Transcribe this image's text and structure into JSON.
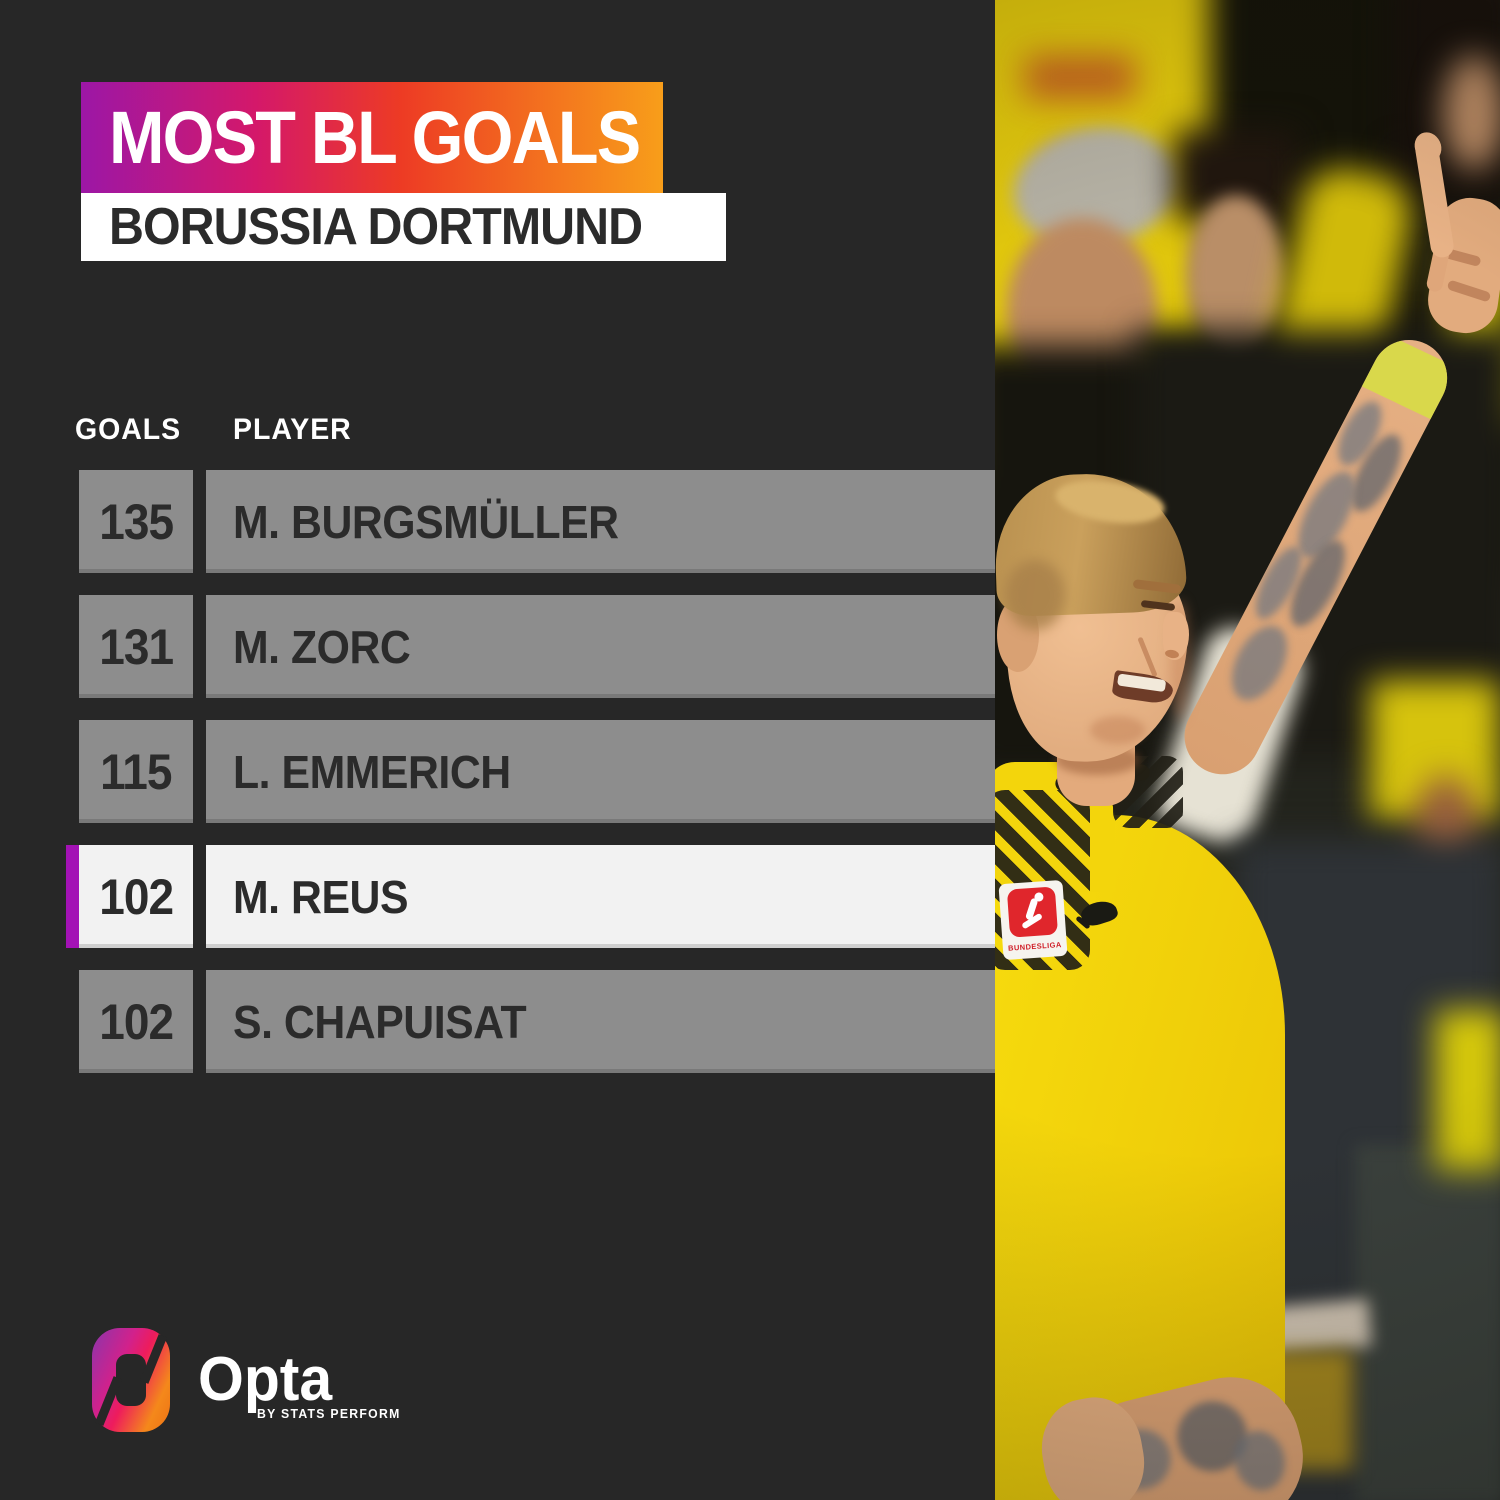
{
  "header": {
    "title": "MOST BL GOALS",
    "subtitle": "BORUSSIA DORTMUND"
  },
  "table": {
    "goals_label": "GOALS",
    "player_label": "PLAYER",
    "rows": [
      {
        "goals": "135",
        "player": "M. BURGSMÜLLER",
        "highlighted": false
      },
      {
        "goals": "131",
        "player": "M. ZORC",
        "highlighted": false
      },
      {
        "goals": "115",
        "player": "L. EMMERICH",
        "highlighted": false
      },
      {
        "goals": "102",
        "player": "M. REUS",
        "highlighted": true
      },
      {
        "goals": "102",
        "player": "S. CHAPUISAT",
        "highlighted": false
      }
    ]
  },
  "footer": {
    "brand": "Opta",
    "byline": "BY STATS PERFORM"
  },
  "photo": {
    "patch_text": "BUNDESLIGA"
  },
  "colors": {
    "background": "#272727",
    "title_gradient": [
      "#9c17a6 0%",
      "#d4186a 30%",
      "#ed3b24 55%",
      "#f89e1a 100%"
    ],
    "ring_gradient": [
      "#8b35ac 0%",
      "#d2218b 35%",
      "#ee1c5c 52%",
      "#f4881b 80%",
      "#ee7214 100%"
    ],
    "subtitle_bg": "#ffffff",
    "row_bg": "#8d8d8d",
    "row_highlight_bg": "#f2f2f2",
    "accent_purple": "#a312b5",
    "text_dark": "#2b2b2b",
    "text_white": "#ffffff",
    "jersey_yellow": "#f3d50c"
  },
  "chart_data": {
    "type": "table",
    "title": "MOST BL GOALS",
    "subtitle": "BORUSSIA DORTMUND",
    "columns": [
      "GOALS",
      "PLAYER"
    ],
    "rows": [
      [
        135,
        "M. BURGSMÜLLER"
      ],
      [
        131,
        "M. ZORC"
      ],
      [
        115,
        "L. EMMERICH"
      ],
      [
        102,
        "M. REUS"
      ],
      [
        102,
        "S. CHAPUISAT"
      ]
    ],
    "highlighted_row": "M. REUS",
    "layout": "ranking table, highlighted row marked with purple accent bar"
  }
}
